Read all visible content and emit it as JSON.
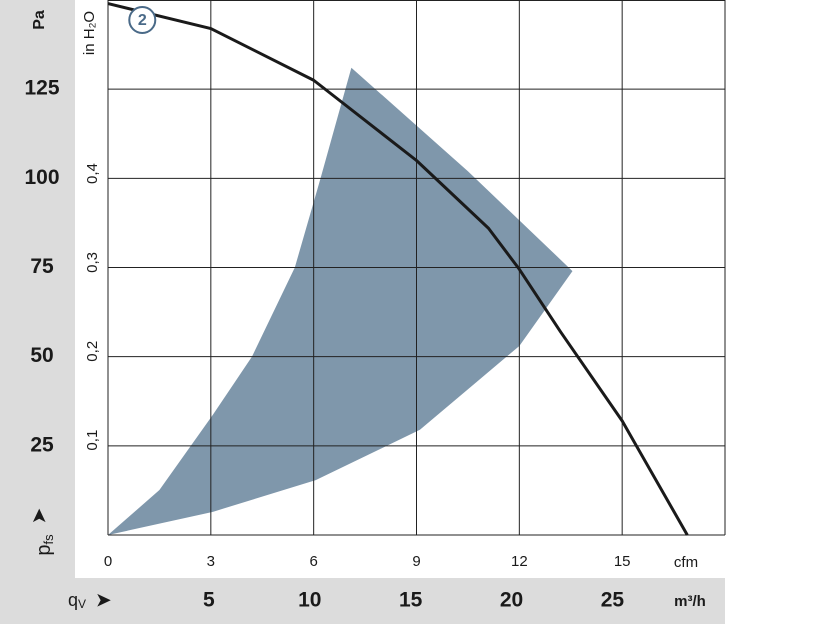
{
  "chart_data": {
    "type": "line",
    "xlim": [
      0,
      18
    ],
    "xticks": [
      0,
      3,
      6,
      9,
      12,
      15
    ],
    "x_unit": "cfm",
    "x2lim": [
      0,
      30.58
    ],
    "x2ticks": [
      5,
      10,
      15,
      20,
      25
    ],
    "x2_unit": "m³/h",
    "xlabel": {
      "main": "q",
      "sub": "V"
    },
    "ylim": [
      0,
      150
    ],
    "yticks": [
      25,
      50,
      75,
      100,
      125
    ],
    "y_unit": "Pa",
    "ylabel": {
      "main": "p",
      "sub": "fs"
    },
    "y2lim": [
      0,
      0.602
    ],
    "y2ticks": [
      {
        "value": 0.1,
        "label": "0,1"
      },
      {
        "value": 0.2,
        "label": "0,2"
      },
      {
        "value": 0.3,
        "label": "0,3"
      },
      {
        "value": 0.4,
        "label": "0,4"
      }
    ],
    "y2_unit": "in H₂O",
    "grid": true,
    "series": [
      {
        "kind": "area",
        "color": "#7f97ab",
        "x": [
          0,
          1.5,
          3.06,
          4.2,
          5.45,
          6.2,
          7.1,
          10.5,
          13.55,
          12,
          9.1,
          6.06,
          3.06
        ],
        "values": [
          0,
          12.6,
          33.7,
          50,
          75,
          100,
          131,
          102,
          74,
          53,
          29.5,
          15.4,
          6.5
        ]
      },
      {
        "kind": "line",
        "color": "#1a1a1a",
        "x": [
          0,
          3,
          6,
          9,
          11.1,
          12,
          13.2,
          15,
          16.9
        ],
        "values": [
          149,
          142,
          127.5,
          105,
          86,
          74.5,
          57,
          32,
          0
        ]
      }
    ],
    "annotation": {
      "text": "2",
      "x": 1.0,
      "y": 144.4
    }
  }
}
